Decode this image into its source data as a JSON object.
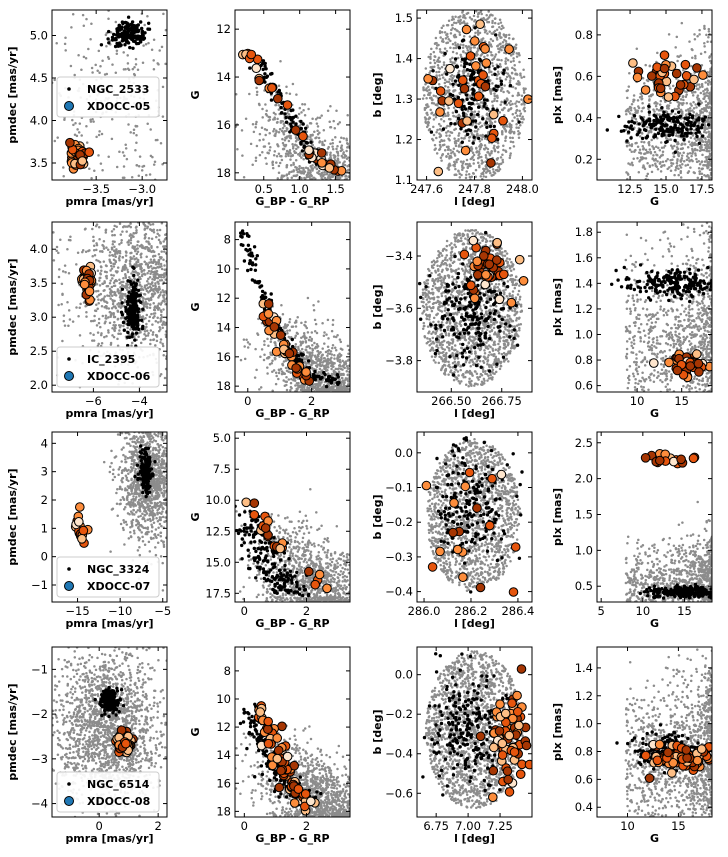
{
  "colors": {
    "field": "#8c8c8c",
    "cluster": "#000000",
    "xdocc_legend": "#1f77b4",
    "xdocc_scale": [
      "#fee6ce",
      "#fdbe85",
      "#fd8d3c",
      "#e6550d",
      "#a63603"
    ]
  },
  "chart_data": [
    {
      "type": "scatter",
      "row": 0,
      "col": 0,
      "xlabel": "pmra [mas/yr]",
      "ylabel": "pmdec [mas/yr]",
      "xlim": [
        -3.98,
        -2.73
      ],
      "ylim": [
        3.3,
        5.3
      ],
      "xticks": [
        -3.5,
        -3.0
      ],
      "yticks": [
        3.5,
        4.0,
        4.5,
        5.0
      ],
      "xtick_labels": [
        "−3.5",
        "−3.0"
      ],
      "ytick_labels": [
        "3.5",
        "4.0",
        "4.5",
        "5.0"
      ],
      "legend": {
        "entries": [
          "NGC_2533",
          "XDOCC-05"
        ],
        "position": "center-left"
      },
      "field": {
        "cx": -3.3,
        "cy": 4.2,
        "sx": 0.45,
        "sy": 0.9,
        "n": 420,
        "shape": "gauss"
      },
      "cluster": {
        "name": "NGC_2533",
        "cx": -3.15,
        "cy": 5.02,
        "sx": 0.09,
        "sy": 0.07,
        "n": 180
      },
      "xdocc": {
        "name": "XDOCC-05",
        "cx": -3.7,
        "cy": 3.58,
        "sx": 0.06,
        "sy": 0.08,
        "n": 30
      }
    },
    {
      "type": "scatter",
      "row": 0,
      "col": 1,
      "xlabel": "G_BP - G_RP",
      "ylabel": "G",
      "xlim": [
        0.1,
        1.7
      ],
      "ylim": [
        18.3,
        11.2
      ],
      "xticks": [
        0.5,
        1.0,
        1.5
      ],
      "yticks": [
        12,
        14,
        16,
        18
      ],
      "xtick_labels": [
        "0.5",
        "1.0",
        "1.5"
      ],
      "ytick_labels": [
        "12",
        "14",
        "16",
        "18"
      ],
      "field": {
        "n": 700,
        "shape": "cmd",
        "x0": 0.6,
        "y0": 14.5,
        "x1": 1.6,
        "y1": 18.3,
        "spread": 0.35,
        "yspread": 0.6
      },
      "cluster": {
        "name": "NGC_2533",
        "n": 110,
        "track": [
          [
            0.42,
            13.3
          ],
          [
            0.6,
            14.3
          ],
          [
            0.8,
            15.3
          ],
          [
            1.0,
            16.3
          ],
          [
            1.2,
            17.3
          ],
          [
            1.4,
            18.0
          ]
        ],
        "spread": 0.07
      },
      "xdocc": {
        "name": "XDOCC-05",
        "n": 34,
        "track": [
          [
            0.18,
            12.8
          ],
          [
            0.5,
            14.0
          ],
          [
            0.8,
            15.4
          ],
          [
            1.05,
            16.6
          ],
          [
            1.3,
            17.6
          ],
          [
            1.55,
            17.9
          ]
        ],
        "spread": 0.06
      }
    },
    {
      "type": "scatter",
      "row": 0,
      "col": 2,
      "xlabel": "l [deg]",
      "ylabel": "b [deg]",
      "xlim": [
        247.56,
        248.04
      ],
      "ylim": [
        1.1,
        1.52
      ],
      "xticks": [
        247.6,
        247.8,
        248.0
      ],
      "yticks": [
        1.1,
        1.2,
        1.3,
        1.4,
        1.5
      ],
      "xtick_labels": [
        "247.6",
        "247.8",
        "248.0"
      ],
      "ytick_labels": [
        "1.1",
        "1.2",
        "1.3",
        "1.4",
        "1.5"
      ],
      "field": {
        "cx": 247.8,
        "cy": 1.31,
        "rx": 0.215,
        "ry": 0.215,
        "n": 1300,
        "shape": "disk"
      },
      "cluster": {
        "name": "NGC_2533",
        "cx": 247.8,
        "cy": 1.32,
        "sx": 0.06,
        "sy": 0.06,
        "n": 170
      },
      "xdocc": {
        "name": "XDOCC-05",
        "cx": 247.8,
        "cy": 1.3,
        "sx": 0.1,
        "sy": 0.1,
        "n": 36
      }
    },
    {
      "type": "scatter",
      "row": 0,
      "col": 3,
      "xlabel": "G",
      "ylabel": "plx [mas]",
      "xlim": [
        10.2,
        18.2
      ],
      "ylim": [
        0.1,
        0.92
      ],
      "xticks": [
        12.5,
        15.0,
        17.5
      ],
      "yticks": [
        0.2,
        0.4,
        0.6,
        0.8
      ],
      "xtick_labels": [
        "12.5",
        "15.0",
        "17.5"
      ],
      "ytick_labels": [
        "0.2",
        "0.4",
        "0.6",
        "0.8"
      ],
      "field": {
        "n": 1100,
        "shape": "plx",
        "ybase": 0.35,
        "yspread": 0.22
      },
      "cluster": {
        "name": "NGC_2533",
        "cx": 15.3,
        "cy": 0.36,
        "sx": 1.6,
        "sy": 0.035,
        "n": 200
      },
      "xdocc": {
        "name": "XDOCC-05",
        "cx": 15.3,
        "cy": 0.6,
        "sx": 1.4,
        "sy": 0.05,
        "n": 34
      }
    },
    {
      "type": "scatter",
      "row": 1,
      "col": 0,
      "xlabel": "pmra [mas/yr]",
      "ylabel": "pmdec [mas/yr]",
      "xlim": [
        -7.8,
        -2.8
      ],
      "ylim": [
        1.9,
        4.4
      ],
      "xticks": [
        -6,
        -4
      ],
      "yticks": [
        2.0,
        2.5,
        3.0,
        3.5,
        4.0
      ],
      "xtick_labels": [
        "−6",
        "−4"
      ],
      "ytick_labels": [
        "2.0",
        "2.5",
        "3.0",
        "3.5",
        "4.0"
      ],
      "legend": {
        "entries": [
          "IC_2395",
          "XDOCC-06"
        ],
        "position": "lower-left"
      },
      "field": {
        "cx": -4.0,
        "cy": 3.5,
        "sx": 1.4,
        "sy": 0.6,
        "n": 1400,
        "shape": "gauss"
      },
      "cluster": {
        "name": "IC_2395",
        "cx": -4.3,
        "cy": 3.15,
        "sx": 0.18,
        "sy": 0.22,
        "n": 200
      },
      "xdocc": {
        "name": "XDOCC-06",
        "cx": -6.2,
        "cy": 3.55,
        "sx": 0.1,
        "sy": 0.12,
        "n": 40
      }
    },
    {
      "type": "scatter",
      "row": 1,
      "col": 1,
      "xlabel": "G_BP - G_RP",
      "ylabel": "G",
      "xlim": [
        -0.4,
        3.2
      ],
      "ylim": [
        18.4,
        6.8
      ],
      "xticks": [
        0,
        2
      ],
      "yticks": [
        8,
        10,
        12,
        14,
        16,
        18
      ],
      "xtick_labels": [
        "0",
        "2"
      ],
      "ytick_labels": [
        "8",
        "10",
        "12",
        "14",
        "16",
        "18"
      ],
      "field": {
        "n": 1000,
        "shape": "cmd",
        "x0": 1.0,
        "y0": 13.5,
        "x1": 3.0,
        "y1": 18.3,
        "spread": 0.6,
        "yspread": 1.0
      },
      "cluster": {
        "name": "IC_2395",
        "n": 160,
        "track": [
          [
            -0.1,
            7.5
          ],
          [
            0.1,
            9.5
          ],
          [
            0.4,
            11.5
          ],
          [
            0.8,
            13.5
          ],
          [
            1.3,
            15.5
          ],
          [
            1.9,
            17.0
          ],
          [
            2.8,
            17.8
          ]
        ],
        "spread": 0.12
      },
      "xdocc": {
        "name": "XDOCC-06",
        "n": 40,
        "track": [
          [
            0.5,
            12.3
          ],
          [
            0.8,
            14.0
          ],
          [
            1.1,
            15.2
          ],
          [
            1.4,
            16.5
          ],
          [
            1.9,
            17.6
          ]
        ],
        "spread": 0.1
      }
    },
    {
      "type": "scatter",
      "row": 1,
      "col": 2,
      "xlabel": "l [deg]",
      "ylabel": "b [deg]",
      "xlim": [
        266.33,
        266.9
      ],
      "ylim": [
        -3.92,
        -3.27
      ],
      "xticks": [
        266.5,
        266.75
      ],
      "yticks": [
        -3.8,
        -3.6,
        -3.4
      ],
      "xtick_labels": [
        "266.50",
        "266.75"
      ],
      "ytick_labels": [
        "−3.8",
        "−3.6",
        "−3.4"
      ],
      "field": {
        "cx": 266.6,
        "cy": -3.6,
        "rx": 0.25,
        "ry": 0.3,
        "n": 1600,
        "shape": "disk"
      },
      "cluster": {
        "name": "IC_2395",
        "cx": 266.6,
        "cy": -3.62,
        "sx": 0.1,
        "sy": 0.1,
        "n": 220
      },
      "xdocc": {
        "name": "XDOCC-06",
        "cx": 266.68,
        "cy": -3.45,
        "sx": 0.06,
        "sy": 0.06,
        "n": 40
      }
    },
    {
      "type": "scatter",
      "row": 1,
      "col": 3,
      "xlabel": "G",
      "ylabel": "plx [mas]",
      "xlim": [
        5.5,
        18.4
      ],
      "ylim": [
        0.55,
        1.88
      ],
      "xticks": [
        10,
        15
      ],
      "yticks": [
        0.6,
        0.8,
        1.0,
        1.2,
        1.4,
        1.6,
        1.8
      ],
      "xtick_labels": [
        "10",
        "15"
      ],
      "ytick_labels": [
        "0.6",
        "0.8",
        "1.0",
        "1.2",
        "1.4",
        "1.6",
        "1.8"
      ],
      "field": {
        "n": 1100,
        "shape": "plx",
        "ybase": 0.95,
        "yspread": 0.45
      },
      "cluster": {
        "name": "IC_2395",
        "cx": 14.5,
        "cy": 1.4,
        "sx": 2.6,
        "sy": 0.05,
        "n": 230
      },
      "xdocc": {
        "name": "XDOCC-06",
        "cx": 15.8,
        "cy": 0.75,
        "sx": 1.3,
        "sy": 0.05,
        "n": 40
      }
    },
    {
      "type": "scatter",
      "row": 2,
      "col": 0,
      "xlabel": "pmra [mas/yr]",
      "ylabel": "pmdec [mas/yr]",
      "xlim": [
        -18,
        -4.5
      ],
      "ylim": [
        -1.6,
        4.4
      ],
      "xticks": [
        -15,
        -10,
        -5
      ],
      "yticks": [
        -1,
        0,
        1,
        2,
        3,
        4
      ],
      "xtick_labels": [
        "−15",
        "−10",
        "−5"
      ],
      "ytick_labels": [
        "−1",
        "0",
        "1",
        "2",
        "3",
        "4"
      ],
      "legend": {
        "entries": [
          "NGC_3324",
          "XDOCC-07"
        ],
        "position": "lower-left"
      },
      "field": {
        "cx": -6.5,
        "cy": 2.8,
        "sx": 1.8,
        "sy": 1.1,
        "n": 1300,
        "shape": "gauss"
      },
      "cluster": {
        "name": "NGC_3324",
        "cx": -7.0,
        "cy": 3.0,
        "sx": 0.35,
        "sy": 0.35,
        "n": 180
      },
      "xdocc": {
        "name": "XDOCC-07",
        "cx": -14.6,
        "cy": 1.0,
        "sx": 0.4,
        "sy": 0.35,
        "n": 16
      }
    },
    {
      "type": "scatter",
      "row": 2,
      "col": 1,
      "xlabel": "G_BP - G_RP",
      "ylabel": "G",
      "xlim": [
        -0.3,
        3.4
      ],
      "ylim": [
        18.2,
        4.5
      ],
      "xticks": [
        0,
        2
      ],
      "yticks": [
        5.0,
        7.5,
        10.0,
        12.5,
        15.0,
        17.5
      ],
      "xtick_labels": [
        "0",
        "2"
      ],
      "ytick_labels": [
        "5.0",
        "7.5",
        "10.0",
        "12.5",
        "15.0",
        "17.5"
      ],
      "field": {
        "n": 1100,
        "shape": "cmd",
        "x0": 0.8,
        "y0": 12.0,
        "x1": 3.2,
        "y1": 18.0,
        "spread": 0.7,
        "yspread": 1.6
      },
      "cluster": {
        "name": "NGC_3324",
        "n": 200,
        "track": [
          [
            0.2,
            11.0
          ],
          [
            0.5,
            13.5
          ],
          [
            0.9,
            15.5
          ],
          [
            1.3,
            16.8
          ],
          [
            1.8,
            17.5
          ]
        ],
        "spread": 0.3
      },
      "xdocc": {
        "name": "XDOCC-07",
        "n": 20,
        "track": [
          [
            0.05,
            9.7
          ],
          [
            0.4,
            11.0
          ],
          [
            0.8,
            12.8
          ],
          [
            1.3,
            14.5
          ],
          [
            2.0,
            15.5
          ],
          [
            2.6,
            16.9
          ]
        ],
        "spread": 0.12
      }
    },
    {
      "type": "scatter",
      "row": 2,
      "col": 2,
      "xlabel": "l [deg]",
      "ylabel": "b [deg]",
      "xlim": [
        285.97,
        286.46
      ],
      "ylim": [
        -0.43,
        0.06
      ],
      "xticks": [
        286.0,
        286.2,
        286.4
      ],
      "yticks": [
        -0.4,
        -0.3,
        -0.2,
        -0.1,
        0.0
      ],
      "xtick_labels": [
        "286.0",
        "286.2",
        "286.4"
      ],
      "ytick_labels": [
        "−0.4",
        "−0.3",
        "−0.2",
        "−0.1",
        "0.0"
      ],
      "field": {
        "cx": 286.21,
        "cy": -0.18,
        "rx": 0.2,
        "ry": 0.22,
        "n": 1500,
        "shape": "disk"
      },
      "cluster": {
        "name": "NGC_3324",
        "cx": 286.2,
        "cy": -0.16,
        "sx": 0.08,
        "sy": 0.08,
        "n": 200
      },
      "xdocc": {
        "name": "XDOCC-07",
        "cx": 286.2,
        "cy": -0.18,
        "sx": 0.12,
        "sy": 0.12,
        "n": 18
      }
    },
    {
      "type": "scatter",
      "row": 2,
      "col": 3,
      "xlabel": "G",
      "ylabel": "plx [mas]",
      "xlim": [
        4.5,
        18.3
      ],
      "ylim": [
        0.28,
        2.65
      ],
      "xticks": [
        5,
        10,
        15
      ],
      "yticks": [
        0.5,
        1.0,
        1.5,
        2.0,
        2.5
      ],
      "xtick_labels": [
        "5",
        "10",
        "15"
      ],
      "ytick_labels": [
        "0.5",
        "1.0",
        "1.5",
        "2.0",
        "2.5"
      ],
      "field": {
        "n": 1200,
        "shape": "plx",
        "ybase": 0.45,
        "yspread": 0.4
      },
      "cluster": {
        "name": "NGC_3324",
        "cx": 15.5,
        "cy": 0.42,
        "sx": 2.5,
        "sy": 0.04,
        "n": 230
      },
      "xdocc": {
        "name": "XDOCC-07",
        "cx": 13.5,
        "cy": 2.27,
        "sx": 2.0,
        "sy": 0.05,
        "n": 16
      }
    },
    {
      "type": "scatter",
      "row": 3,
      "col": 0,
      "xlabel": "pmra [mas/yr]",
      "ylabel": "pmdec [mas/yr]",
      "xlim": [
        -1.6,
        2.3
      ],
      "ylim": [
        -4.3,
        -0.5
      ],
      "xticks": [
        0,
        2
      ],
      "yticks": [
        -4,
        -3,
        -2,
        -1
      ],
      "xtick_labels": [
        "0",
        "2"
      ],
      "ytick_labels": [
        "−4",
        "−3",
        "−2",
        "−1"
      ],
      "legend": {
        "entries": [
          "NGC_6514",
          "XDOCC-08"
        ],
        "position": "lower-left"
      },
      "field": {
        "cx": 0.3,
        "cy": -2.3,
        "sx": 0.9,
        "sy": 0.9,
        "n": 1800,
        "shape": "gauss"
      },
      "cluster": {
        "name": "NGC_6514",
        "cx": 0.35,
        "cy": -1.7,
        "sx": 0.15,
        "sy": 0.12,
        "n": 220
      },
      "xdocc": {
        "name": "XDOCC-08",
        "cx": 0.85,
        "cy": -2.65,
        "sx": 0.12,
        "sy": 0.12,
        "n": 60
      }
    },
    {
      "type": "scatter",
      "row": 3,
      "col": 1,
      "xlabel": "G_BP - G_RP",
      "ylabel": "G",
      "xlim": [
        -0.3,
        3.4
      ],
      "ylim": [
        18.4,
        6.3
      ],
      "xticks": [
        0,
        2
      ],
      "yticks": [
        8,
        10,
        12,
        14,
        16,
        18
      ],
      "xtick_labels": [
        "0",
        "2"
      ],
      "ytick_labels": [
        "8",
        "10",
        "12",
        "14",
        "16",
        "18"
      ],
      "field": {
        "n": 1200,
        "shape": "cmd",
        "x0": 0.9,
        "y0": 13.0,
        "x1": 3.2,
        "y1": 18.2,
        "spread": 0.7,
        "yspread": 1.2
      },
      "cluster": {
        "name": "NGC_6514",
        "n": 180,
        "track": [
          [
            0.3,
            11.0
          ],
          [
            0.6,
            13.0
          ],
          [
            1.0,
            15.0
          ],
          [
            1.5,
            16.5
          ],
          [
            2.2,
            17.5
          ]
        ],
        "spread": 0.25
      },
      "xdocc": {
        "name": "XDOCC-08",
        "n": 70,
        "track": [
          [
            0.6,
            10.5
          ],
          [
            0.9,
            12.5
          ],
          [
            1.2,
            14.5
          ],
          [
            1.5,
            16.0
          ],
          [
            1.9,
            17.5
          ]
        ],
        "spread": 0.22
      }
    },
    {
      "type": "scatter",
      "row": 3,
      "col": 2,
      "xlabel": "l [deg]",
      "ylabel": "b [deg]",
      "xlim": [
        6.6,
        7.5
      ],
      "ylim": [
        -0.72,
        0.14
      ],
      "xticks": [
        6.75,
        7.0,
        7.25
      ],
      "yticks": [
        -0.6,
        -0.4,
        -0.2,
        0.0
      ],
      "xtick_labels": [
        "6.75",
        "7.00",
        "7.25"
      ],
      "ytick_labels": [
        "−0.6",
        "−0.4",
        "−0.2",
        "0.0"
      ],
      "field": {
        "cx": 7.05,
        "cy": -0.28,
        "rx": 0.38,
        "ry": 0.4,
        "n": 1700,
        "shape": "disk"
      },
      "cluster": {
        "name": "NGC_6514",
        "cx": 7.0,
        "cy": -0.28,
        "sx": 0.15,
        "sy": 0.15,
        "n": 220
      },
      "xdocc": {
        "name": "XDOCC-08",
        "cx": 7.32,
        "cy": -0.3,
        "sx": 0.07,
        "sy": 0.12,
        "n": 70
      }
    },
    {
      "type": "scatter",
      "row": 3,
      "col": 3,
      "xlabel": "G",
      "ylabel": "plx [mas]",
      "xlim": [
        7.0,
        18.3
      ],
      "ylim": [
        0.33,
        1.55
      ],
      "xticks": [
        10,
        15
      ],
      "yticks": [
        0.4,
        0.6,
        0.8,
        1.0,
        1.2,
        1.4
      ],
      "xtick_labels": [
        "10",
        "15"
      ],
      "ytick_labels": [
        "0.4",
        "0.6",
        "0.8",
        "1.0",
        "1.2",
        "1.4"
      ],
      "field": {
        "n": 1300,
        "shape": "plx",
        "ybase": 0.75,
        "yspread": 0.35
      },
      "cluster": {
        "name": "NGC_6514",
        "cx": 14.5,
        "cy": 0.8,
        "sx": 2.0,
        "sy": 0.06,
        "n": 200
      },
      "xdocc": {
        "name": "XDOCC-08",
        "cx": 15.5,
        "cy": 0.75,
        "sx": 1.6,
        "sy": 0.05,
        "n": 70
      }
    }
  ]
}
